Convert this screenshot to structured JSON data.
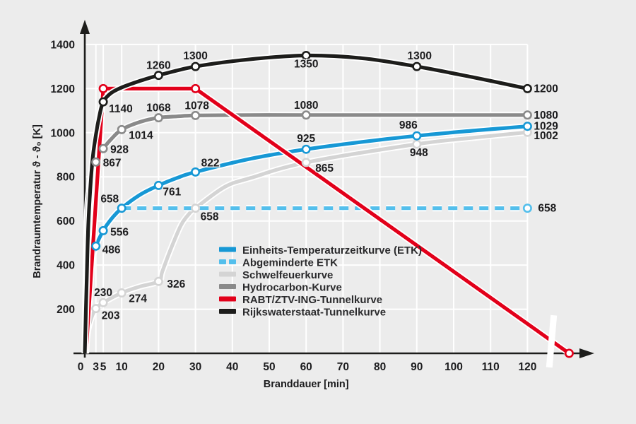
{
  "figure": {
    "background": "#ececec",
    "grid_color": "#ffffff",
    "axis_color": "#1d1d1b",
    "text_color": "#1c1c1e"
  },
  "chart_data": {
    "type": "line",
    "title": "",
    "xlabel": "Branddauer  [min]",
    "ylabel": "Brandraumtemperatur  ϑ - ϑ₀  [K]",
    "x_ticks": [
      0,
      3,
      5,
      10,
      20,
      30,
      40,
      50,
      60,
      70,
      80,
      90,
      100,
      110,
      120
    ],
    "y_ticks": [
      200,
      400,
      600,
      800,
      1000,
      1200,
      1400
    ],
    "xlim": [
      0,
      132
    ],
    "ylim": [
      0,
      1400
    ],
    "grid": "on",
    "legend_position": "center",
    "axis_break": {
      "x": 126.5,
      "crosses": "x-axis and RABT curve"
    },
    "series": [
      {
        "id": "schwelfeuer",
        "name": "Schwelfeuerkurve",
        "color": "#d4d4d4",
        "dash": null,
        "smooth": true,
        "points": [
          [
            0,
            0
          ],
          [
            0.5,
            60
          ],
          [
            1,
            115
          ],
          [
            2,
            170
          ],
          [
            3,
            203
          ],
          [
            5,
            230
          ],
          [
            10,
            274
          ],
          [
            15,
            303
          ],
          [
            20,
            326
          ],
          [
            21,
            370
          ],
          [
            23,
            460
          ],
          [
            26,
            578
          ],
          [
            28,
            627
          ],
          [
            30,
            658
          ],
          [
            38,
            755
          ],
          [
            45,
            795
          ],
          [
            60,
            865
          ],
          [
            90,
            948
          ],
          [
            105,
            977
          ],
          [
            120,
            1002
          ]
        ],
        "markers": [
          [
            3,
            203
          ],
          [
            5,
            230
          ],
          [
            10,
            274
          ],
          [
            20,
            326
          ],
          [
            30,
            658
          ],
          [
            60,
            865
          ],
          [
            90,
            948
          ],
          [
            120,
            1002
          ]
        ],
        "labels": [
          {
            "text": "203",
            "t": 3,
            "k": 203,
            "dx": 8,
            "dy": 15,
            "anchor": "start"
          },
          {
            "text": "230",
            "t": 5,
            "k": 230,
            "dx": 0,
            "dy": -9,
            "anchor": "middle"
          },
          {
            "text": "274",
            "t": 10,
            "k": 274,
            "dx": 10,
            "dy": 13,
            "anchor": "start"
          },
          {
            "text": "326",
            "t": 20,
            "k": 326,
            "dx": 12,
            "dy": 9,
            "anchor": "start"
          },
          {
            "text": "658",
            "t": 30,
            "k": 658,
            "dx": 7,
            "dy": 17,
            "anchor": "start"
          },
          {
            "text": "865",
            "t": 60,
            "k": 865,
            "dx": 13,
            "dy": 13,
            "anchor": "start"
          },
          {
            "text": "948",
            "t": 90,
            "k": 948,
            "dx": 3,
            "dy": 17,
            "anchor": "middle"
          },
          {
            "text": "1002",
            "t": 120,
            "k": 1002,
            "dx": 9,
            "dy": 10,
            "anchor": "start"
          }
        ]
      },
      {
        "id": "hydrocarbon",
        "name": "Hydrocarbon-Kurve",
        "color": "#8a8a8a",
        "dash": null,
        "smooth": true,
        "points": [
          [
            0,
            0
          ],
          [
            0.5,
            548
          ],
          [
            1,
            723
          ],
          [
            2,
            824
          ],
          [
            3,
            867
          ],
          [
            4,
            900
          ],
          [
            5,
            928
          ],
          [
            7,
            968
          ],
          [
            10,
            1014
          ],
          [
            15,
            1049
          ],
          [
            20,
            1068
          ],
          [
            25,
            1074
          ],
          [
            30,
            1078
          ],
          [
            45,
            1080
          ],
          [
            60,
            1080
          ],
          [
            90,
            1080
          ],
          [
            120,
            1080
          ]
        ],
        "markers": [
          [
            3,
            867
          ],
          [
            5,
            928
          ],
          [
            10,
            1014
          ],
          [
            20,
            1068
          ],
          [
            30,
            1078
          ],
          [
            60,
            1080
          ],
          [
            120,
            1080
          ]
        ],
        "labels": [
          {
            "text": "867",
            "t": 3,
            "k": 867,
            "dx": 10,
            "dy": 6,
            "anchor": "start"
          },
          {
            "text": "928",
            "t": 5,
            "k": 928,
            "dx": 10,
            "dy": 6,
            "anchor": "start"
          },
          {
            "text": "1014",
            "t": 10,
            "k": 1014,
            "dx": 10,
            "dy": 13,
            "anchor": "start"
          },
          {
            "text": "1068",
            "t": 20,
            "k": 1068,
            "dx": 0,
            "dy": -9,
            "anchor": "middle"
          },
          {
            "text": "1078",
            "t": 30,
            "k": 1078,
            "dx": 2,
            "dy": -9,
            "anchor": "middle"
          },
          {
            "text": "1080",
            "t": 60,
            "k": 1080,
            "dx": 0,
            "dy": -9,
            "anchor": "middle"
          },
          {
            "text": "1080",
            "t": 120,
            "k": 1080,
            "dx": 9,
            "dy": 5,
            "anchor": "start"
          }
        ]
      },
      {
        "id": "etk",
        "name": "Einheits-Temperaturzeitkurve (ETK)",
        "color": "#1798d5",
        "dash": null,
        "smooth": true,
        "points": [
          [
            0,
            0
          ],
          [
            0.5,
            241
          ],
          [
            1,
            329
          ],
          [
            2,
            425
          ],
          [
            3,
            486
          ],
          [
            5,
            556
          ],
          [
            7,
            605
          ],
          [
            10,
            658
          ],
          [
            15,
            719
          ],
          [
            20,
            761
          ],
          [
            25,
            795
          ],
          [
            30,
            822
          ],
          [
            45,
            882
          ],
          [
            60,
            925
          ],
          [
            75,
            958
          ],
          [
            90,
            986
          ],
          [
            105,
            1009
          ],
          [
            120,
            1029
          ]
        ],
        "markers": [
          [
            3,
            486
          ],
          [
            5,
            556
          ],
          [
            10,
            658
          ],
          [
            20,
            761
          ],
          [
            30,
            822
          ],
          [
            60,
            925
          ],
          [
            90,
            986
          ],
          [
            120,
            1029
          ]
        ],
        "labels": [
          {
            "text": "486",
            "t": 3,
            "k": 486,
            "dx": 9,
            "dy": 10,
            "anchor": "start"
          },
          {
            "text": "556",
            "t": 5,
            "k": 556,
            "dx": 10,
            "dy": 7,
            "anchor": "start"
          },
          {
            "text": "658",
            "t": 10,
            "k": 658,
            "dx": -4,
            "dy": -8,
            "anchor": "end"
          },
          {
            "text": "761",
            "t": 20,
            "k": 761,
            "dx": 6,
            "dy": 14,
            "anchor": "start"
          },
          {
            "text": "822",
            "t": 30,
            "k": 822,
            "dx": 8,
            "dy": -8,
            "anchor": "start"
          },
          {
            "text": "925",
            "t": 60,
            "k": 925,
            "dx": 0,
            "dy": -10,
            "anchor": "middle"
          },
          {
            "text": "986",
            "t": 90,
            "k": 986,
            "dx": -12,
            "dy": -10,
            "anchor": "middle"
          },
          {
            "text": "1029",
            "t": 120,
            "k": 1029,
            "dx": 9,
            "dy": 5,
            "anchor": "start"
          }
        ]
      },
      {
        "id": "abgeminderte-etk",
        "name": "Abgeminderte ETK",
        "color": "#54bfec",
        "dash": "13 9",
        "smooth": false,
        "points": [
          [
            10,
            658
          ],
          [
            120,
            658
          ]
        ],
        "markers": [
          [
            120,
            658
          ]
        ],
        "labels": [
          {
            "text": "658",
            "t": 120,
            "k": 658,
            "dx": 15,
            "dy": 5,
            "anchor": "start"
          }
        ]
      },
      {
        "id": "rabt",
        "name": "RABT/ZTV-ING-Tunnelkurve",
        "color": "#e2001a",
        "dash": null,
        "smooth": false,
        "points": [
          [
            0.3,
            0
          ],
          [
            5,
            1200
          ],
          [
            30,
            1200
          ],
          [
            131.3,
            0
          ]
        ],
        "markers": [
          [
            5,
            1200
          ],
          [
            30,
            1200
          ],
          [
            131.3,
            0
          ]
        ],
        "labels": []
      },
      {
        "id": "rijkswaterstaat",
        "name": "Rijkswaterstaat-Tunnelkurve",
        "color": "#1d1d1b",
        "dash": null,
        "smooth": true,
        "points": [
          [
            0,
            0
          ],
          [
            0.5,
            320
          ],
          [
            1,
            600
          ],
          [
            2,
            860
          ],
          [
            3,
            990
          ],
          [
            4,
            1080
          ],
          [
            5,
            1140
          ],
          [
            7,
            1178
          ],
          [
            10,
            1205
          ],
          [
            15,
            1235
          ],
          [
            20,
            1260
          ],
          [
            30,
            1300
          ],
          [
            45,
            1333
          ],
          [
            60,
            1350
          ],
          [
            75,
            1338
          ],
          [
            90,
            1300
          ],
          [
            105,
            1252
          ],
          [
            120,
            1200
          ]
        ],
        "markers": [
          [
            5,
            1140
          ],
          [
            20,
            1260
          ],
          [
            30,
            1300
          ],
          [
            60,
            1350
          ],
          [
            90,
            1300
          ],
          [
            120,
            1200
          ]
        ],
        "labels": [
          {
            "text": "1140",
            "t": 5,
            "k": 1140,
            "dx": 8,
            "dy": 15,
            "anchor": "start"
          },
          {
            "text": "1260",
            "t": 20,
            "k": 1260,
            "dx": 0,
            "dy": -9,
            "anchor": "middle"
          },
          {
            "text": "1300",
            "t": 30,
            "k": 1300,
            "dx": 0,
            "dy": -10,
            "anchor": "middle"
          },
          {
            "text": "1350",
            "t": 60,
            "k": 1350,
            "dx": 0,
            "dy": 17,
            "anchor": "middle"
          },
          {
            "text": "1300",
            "t": 90,
            "k": 1300,
            "dx": 4,
            "dy": -10,
            "anchor": "middle"
          },
          {
            "text": "1200",
            "t": 120,
            "k": 1200,
            "dx": 9,
            "dy": 5,
            "anchor": "start"
          }
        ]
      }
    ],
    "legend": {
      "items": [
        {
          "label": "Einheits-Temperaturzeitkurve (ETK)",
          "series": "etk"
        },
        {
          "label": "Abgeminderte ETK",
          "series": "abgeminderte-etk"
        },
        {
          "label": "Schwelfeuerkurve",
          "series": "schwelfeuer"
        },
        {
          "label": "Hydrocarbon-Kurve",
          "series": "hydrocarbon"
        },
        {
          "label": "RABT/ZTV-ING-Tunnelkurve",
          "series": "rabt"
        },
        {
          "label": "Rijkswaterstaat-Tunnelkurve",
          "series": "rijkswaterstaat"
        }
      ]
    }
  }
}
